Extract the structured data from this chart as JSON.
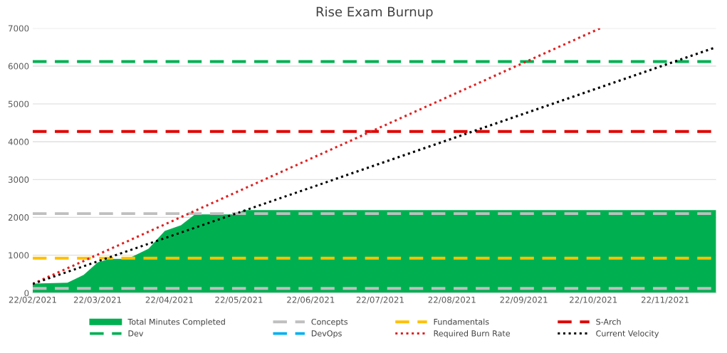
{
  "chart_data": {
    "type": "line",
    "title": "Rise Exam Burnup",
    "grid": "y",
    "legend": "bottom",
    "marker": "none",
    "xlim": [
      "2021-02-22",
      "2021-12-14"
    ],
    "ylim": [
      0,
      7000
    ],
    "yticks": [
      0,
      1000,
      2000,
      3000,
      4000,
      5000,
      6000,
      7000
    ],
    "xticks": [
      {
        "value": "2021-02-22",
        "label": "22/02/2021"
      },
      {
        "value": "2021-03-22",
        "label": "22/03/2021"
      },
      {
        "value": "2021-04-22",
        "label": "22/04/2021"
      },
      {
        "value": "2021-05-22",
        "label": "22/05/2021"
      },
      {
        "value": "2021-06-22",
        "label": "22/06/2021"
      },
      {
        "value": "2021-07-22",
        "label": "22/07/2021"
      },
      {
        "value": "2021-08-22",
        "label": "22/08/2021"
      },
      {
        "value": "2021-09-22",
        "label": "22/09/2021"
      },
      {
        "value": "2021-10-22",
        "label": "22/10/2021"
      },
      {
        "value": "2021-11-22",
        "label": "22/11/2021"
      }
    ],
    "series": [
      {
        "name": "Total Minutes Completed",
        "type": "area",
        "color": "#00b050",
        "x": [
          "2021-02-22",
          "2021-03-09",
          "2021-03-16",
          "2021-03-22",
          "2021-03-27",
          "2021-04-04",
          "2021-04-13",
          "2021-04-20",
          "2021-04-27",
          "2021-05-03",
          "2021-05-21",
          "2021-05-24",
          "2021-12-14"
        ],
        "values": [
          250,
          270,
          480,
          810,
          900,
          900,
          1170,
          1640,
          1790,
          2080,
          2080,
          2190,
          2190
        ]
      },
      {
        "name": "Concepts",
        "color": "#bfbfbf",
        "line_style": "dashed",
        "x": [
          "2021-02-22",
          "2021-12-14"
        ],
        "values": [
          120,
          120
        ]
      },
      {
        "name": "Fundamentals",
        "color": "#ffc000",
        "line_style": "dashed",
        "x": [
          "2021-02-22",
          "2021-12-14"
        ],
        "values": [
          920,
          920
        ]
      },
      {
        "color": "#bfbfbf",
        "line_style": "dashed",
        "x": [
          "2021-02-22",
          "2021-12-14"
        ],
        "values": [
          2100,
          2100
        ]
      },
      {
        "name": "S-Arch",
        "color": "#e00000",
        "line_style": "dashed",
        "x": [
          "2021-02-22",
          "2021-12-14"
        ],
        "values": [
          4270,
          4270
        ]
      },
      {
        "name": "Dev",
        "color": "#00b050",
        "line_style": "dashed",
        "x": [
          "2021-02-22",
          "2021-12-14"
        ],
        "values": [
          6120,
          6120
        ]
      },
      {
        "name": "DevOps",
        "color": "#00b0f0",
        "line_style": "dashed"
      },
      {
        "name": "Required Burn Rate",
        "color": "#e02020",
        "line_style": "dotted",
        "x": [
          "2021-02-22",
          "2021-10-25"
        ],
        "values": [
          240,
          7000
        ]
      },
      {
        "name": "Current Velocity",
        "color": "#000000",
        "line_style": "dotted",
        "x": [
          "2021-02-22",
          "2021-12-14"
        ],
        "values": [
          240,
          6500
        ]
      }
    ]
  }
}
